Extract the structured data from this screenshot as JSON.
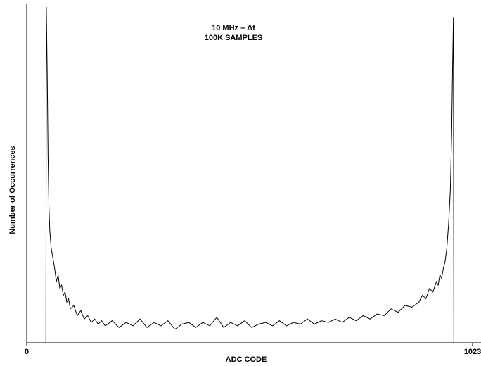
{
  "chart_data": {
    "type": "line",
    "title": [
      "10 MHz – Δf",
      "100K SAMPLES"
    ],
    "xlabel": "ADC CODE",
    "ylabel": "Number of Occurrences",
    "xlim": [
      0,
      1023
    ],
    "xticks": [
      0,
      1023
    ],
    "ylim": [
      0,
      100
    ],
    "color": "#000000",
    "x": [
      44,
      45,
      47,
      49,
      51,
      53,
      56,
      60,
      64,
      68,
      72,
      76,
      80,
      84,
      88,
      92,
      96,
      100,
      108,
      116,
      124,
      132,
      140,
      148,
      156,
      164,
      172,
      180,
      196,
      212,
      228,
      244,
      260,
      276,
      292,
      308,
      324,
      340,
      356,
      372,
      388,
      404,
      420,
      436,
      452,
      468,
      484,
      500,
      516,
      532,
      548,
      564,
      580,
      596,
      612,
      628,
      644,
      660,
      676,
      692,
      708,
      724,
      740,
      756,
      772,
      788,
      804,
      820,
      836,
      852,
      868,
      884,
      900,
      908,
      916,
      924,
      932,
      940,
      944,
      948,
      952,
      956,
      960,
      964,
      968,
      972,
      975,
      977,
      979,
      980
    ],
    "values": [
      0,
      99,
      80,
      55,
      40,
      33,
      28,
      25,
      22,
      18,
      20,
      16,
      17,
      14,
      15,
      12,
      13,
      10,
      11,
      8,
      9.5,
      7,
      8,
      6,
      7,
      5.5,
      6.5,
      5,
      6.5,
      4.5,
      6,
      5,
      7,
      4.5,
      6,
      5,
      6.5,
      4,
      5.5,
      6,
      4.5,
      6,
      5,
      7.5,
      4.5,
      6,
      5,
      6.5,
      4.5,
      5.5,
      6,
      5,
      6.5,
      5,
      6,
      5.5,
      7,
      5.5,
      6.5,
      6,
      7,
      6,
      7.5,
      6.5,
      8,
      7,
      8.5,
      8,
      10,
      9,
      11,
      10.5,
      12,
      14,
      13,
      16,
      15,
      18,
      17,
      20,
      19,
      22,
      24,
      28,
      35,
      45,
      62,
      80,
      96,
      0
    ]
  }
}
